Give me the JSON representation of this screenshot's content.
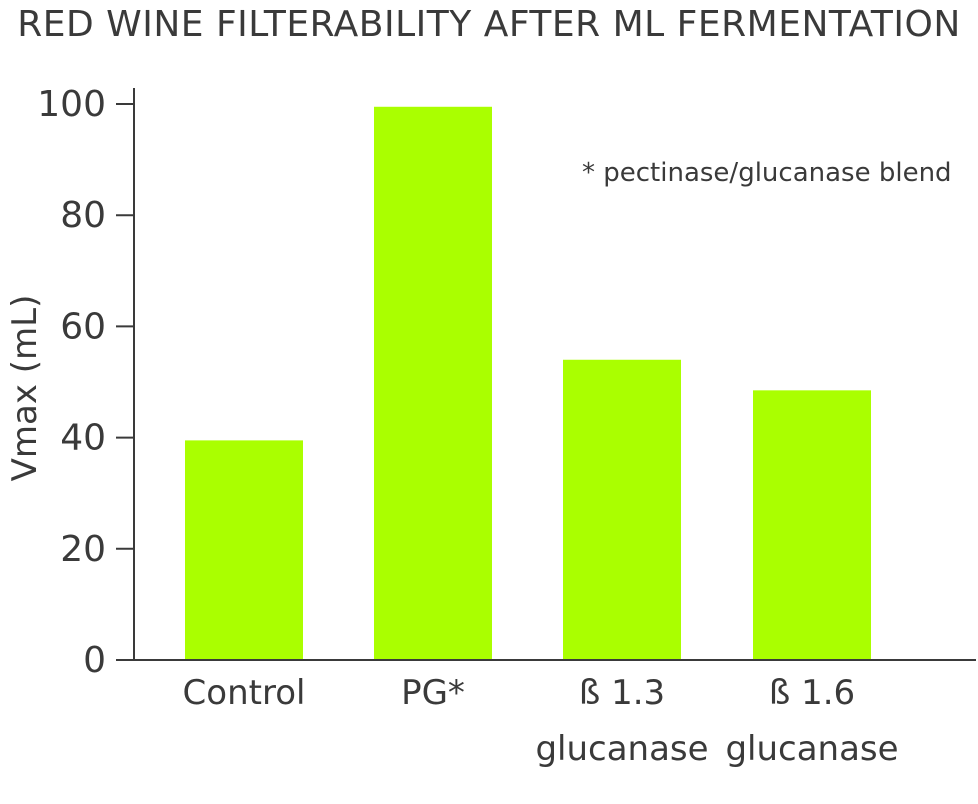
{
  "chart_data": {
    "type": "bar",
    "title": "RED WINE FILTERABILITY AFTER ML FERMENTATION",
    "xlabel": "",
    "ylabel": "Vmax (mL)",
    "categories": [
      [
        "Control"
      ],
      [
        "PG*"
      ],
      [
        "ß 1.3",
        "glucanase"
      ],
      [
        "ß 1.6",
        "glucanase"
      ]
    ],
    "values": [
      39.5,
      99.5,
      54,
      48.5
    ],
    "ylim": [
      0,
      100
    ],
    "yticks": [
      0,
      20,
      40,
      60,
      80,
      100
    ],
    "grid": false,
    "annotation": "* pectinase/glucanase blend",
    "colors": {
      "bar": "#aaff00",
      "axis": "#3a3a3a",
      "text": "#3a3a3a"
    }
  }
}
